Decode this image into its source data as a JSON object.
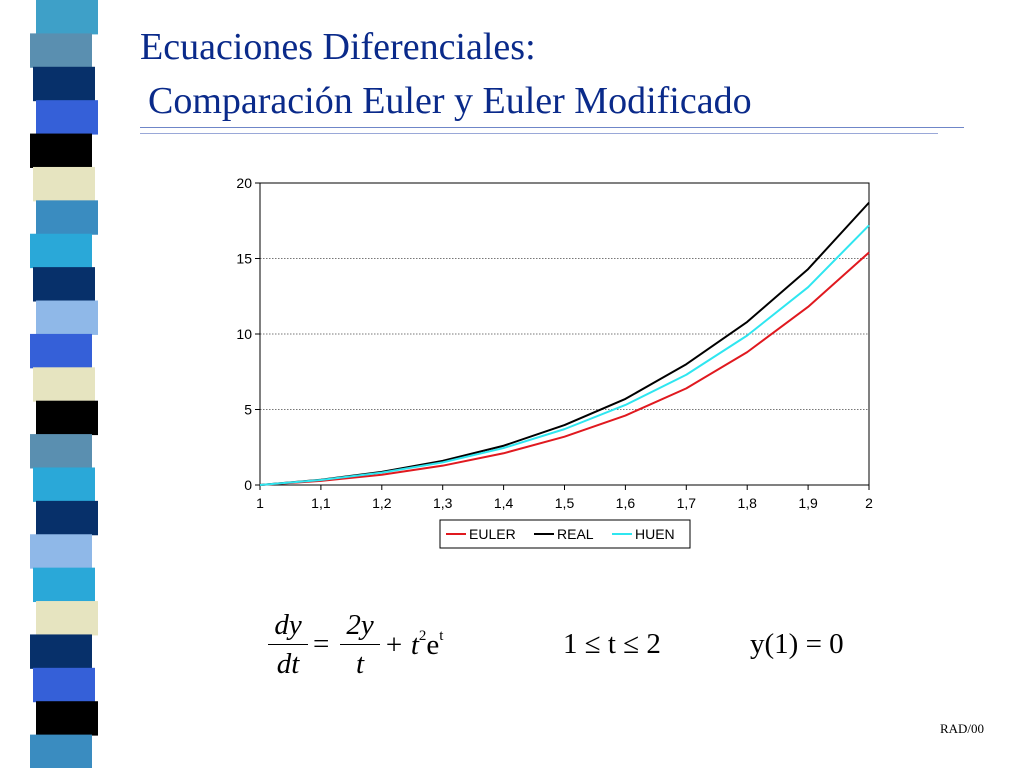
{
  "slide": {
    "title_line1": "Ecuaciones Diferenciales:",
    "title_line2": "Comparación Euler y Euler Modificado",
    "footer": "RAD/00",
    "accent_color": "#0a2a8a"
  },
  "equation": {
    "lhs_num": "dy",
    "lhs_den": "dt",
    "equals": "=",
    "rhs_num": "2y",
    "rhs_den": "t",
    "plus_term": "+ t",
    "exp_2": "2",
    "e": "e",
    "exp_t": "t",
    "range": "1 ≤ t ≤ 2",
    "initial": "y(1) = 0"
  },
  "chart_data": {
    "type": "line",
    "x": [
      1,
      1.1,
      1.2,
      1.3,
      1.4,
      1.5,
      1.6,
      1.7,
      1.8,
      1.9,
      2
    ],
    "x_tick_labels": [
      "1",
      "1,1",
      "1,2",
      "1,3",
      "1,4",
      "1,5",
      "1,6",
      "1,7",
      "1,8",
      "1,9",
      "2"
    ],
    "y_ticks": [
      0,
      5,
      10,
      15,
      20
    ],
    "y_tick_labels": [
      "0",
      "5",
      "10",
      "15",
      "20"
    ],
    "ylim": [
      0,
      20
    ],
    "xlim": [
      1,
      2
    ],
    "grid": "horizontal dotted",
    "legend_position": "bottom",
    "series": [
      {
        "name": "EULER",
        "color": "#e0191f",
        "values": [
          0,
          0.27,
          0.68,
          1.28,
          2.1,
          3.2,
          4.6,
          6.4,
          8.8,
          11.8,
          15.4
        ]
      },
      {
        "name": "REAL",
        "color": "#000000",
        "values": [
          0,
          0.35,
          0.87,
          1.6,
          2.6,
          3.97,
          5.7,
          8.0,
          10.8,
          14.3,
          18.7
        ]
      },
      {
        "name": "HUEN",
        "color": "#2fe6f0",
        "values": [
          0,
          0.33,
          0.82,
          1.5,
          2.45,
          3.7,
          5.3,
          7.3,
          9.9,
          13.1,
          17.2
        ]
      }
    ]
  }
}
